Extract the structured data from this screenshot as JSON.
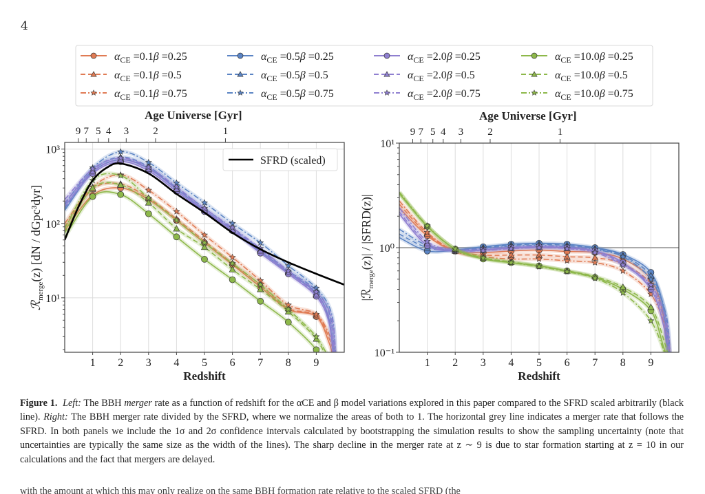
{
  "page_number": "4",
  "legend": {
    "entries": [
      {
        "alpha": "0.1",
        "beta": "0.25",
        "label": "αCE =0.1β =0.25",
        "color": "#e07b54",
        "style": "solid",
        "marker": "circle"
      },
      {
        "alpha": "0.1",
        "beta": "0.5",
        "label": "αCE =0.1β =0.5",
        "color": "#e07b54",
        "style": "dashed",
        "marker": "triangle"
      },
      {
        "alpha": "0.1",
        "beta": "0.75",
        "label": "αCE =0.1β =0.75",
        "color": "#e07b54",
        "style": "dashdot",
        "marker": "star"
      },
      {
        "alpha": "0.5",
        "beta": "0.25",
        "label": "αCE =0.5β =0.25",
        "color": "#5b84c4",
        "style": "solid",
        "marker": "circle"
      },
      {
        "alpha": "0.5",
        "beta": "0.5",
        "label": "αCE =0.5β =0.5",
        "color": "#5b84c4",
        "style": "dashed",
        "marker": "triangle"
      },
      {
        "alpha": "0.5",
        "beta": "0.75",
        "label": "αCE =0.5β =0.75",
        "color": "#5b84c4",
        "style": "dashdot",
        "marker": "star"
      },
      {
        "alpha": "2.0",
        "beta": "0.25",
        "label": "αCE =2.0β =0.25",
        "color": "#8f7fd0",
        "style": "solid",
        "marker": "circle"
      },
      {
        "alpha": "2.0",
        "beta": "0.5",
        "label": "αCE =2.0β =0.5",
        "color": "#8f7fd0",
        "style": "dashed",
        "marker": "triangle"
      },
      {
        "alpha": "2.0",
        "beta": "0.75",
        "label": "αCE =2.0β =0.75",
        "color": "#8f7fd0",
        "style": "dashdot",
        "marker": "star"
      },
      {
        "alpha": "10.0",
        "beta": "0.25",
        "label": "αCE =10.0β =0.25",
        "color": "#8db84a",
        "style": "solid",
        "marker": "circle"
      },
      {
        "alpha": "10.0",
        "beta": "0.5",
        "label": "αCE =10.0β =0.5",
        "color": "#8db84a",
        "style": "dashed",
        "marker": "triangle"
      },
      {
        "alpha": "10.0",
        "beta": "0.75",
        "label": "αCE =10.0β =0.75",
        "color": "#8db84a",
        "style": "dashdot",
        "marker": "star"
      }
    ]
  },
  "chart_data": [
    {
      "type": "line",
      "panel": "left",
      "title": "",
      "top_xlabel": "Age Universe [Gyr]",
      "top_ticks": [
        {
          "label": "9",
          "z": 0.48
        },
        {
          "label": "7",
          "z": 0.77
        },
        {
          "label": "5",
          "z": 1.2
        },
        {
          "label": "4",
          "z": 1.57
        },
        {
          "label": "3",
          "z": 2.2
        },
        {
          "label": "2",
          "z": 3.25
        },
        {
          "label": "1",
          "z": 5.75
        }
      ],
      "xlabel": "Redshift",
      "ylabel": "R_merge(z)  [dN / dGpc³dyr]",
      "xlim": [
        0,
        10
      ],
      "ylim": [
        1.85,
        1230
      ],
      "yscale": "log",
      "xticks": [
        1,
        2,
        3,
        4,
        5,
        6,
        7,
        8,
        9
      ],
      "yticks": [
        {
          "value": 10,
          "label": "10¹"
        },
        {
          "value": 100,
          "label": "10²"
        },
        {
          "value": 1000,
          "label": "10³"
        }
      ],
      "grid": true,
      "inner_legend": {
        "label": "SFRD (scaled)",
        "placement": "top-right"
      },
      "x": [
        0,
        1,
        2,
        3,
        4,
        5,
        6,
        7,
        8,
        9
      ],
      "sfrd": {
        "name": "SFRD (scaled)",
        "color": "#000000",
        "x": [
          0,
          0.5,
          1,
          1.5,
          2,
          3,
          4,
          5,
          6,
          7,
          8,
          9,
          10
        ],
        "values": [
          60,
          170,
          380,
          560,
          640,
          470,
          250,
          140,
          75,
          45,
          30,
          21,
          15
        ]
      },
      "series": [
        {
          "name": "αCE=0.1 β=0.25",
          "values": [
            80,
            240,
            300,
            210,
            110,
            55,
            28,
            14,
            7,
            5.6
          ]
        },
        {
          "name": "αCE=0.1 β=0.5",
          "values": [
            90,
            290,
            340,
            220,
            115,
            58,
            29,
            15,
            7.2,
            5.8
          ]
        },
        {
          "name": "αCE=0.1 β=0.75",
          "values": [
            100,
            310,
            450,
            280,
            145,
            70,
            35,
            17,
            8,
            6
          ]
        },
        {
          "name": "αCE=0.5 β=0.25",
          "values": [
            150,
            490,
            720,
            550,
            290,
            150,
            80,
            42,
            22,
            11.5
          ]
        },
        {
          "name": "αCE=0.5 β=0.5",
          "values": [
            160,
            520,
            780,
            580,
            300,
            160,
            85,
            45,
            23,
            12.5
          ]
        },
        {
          "name": "αCE=0.5 β=0.75",
          "values": [
            180,
            560,
            920,
            660,
            350,
            190,
            100,
            55,
            27,
            13.5
          ]
        },
        {
          "name": "αCE=2.0 β=0.25",
          "values": [
            170,
            470,
            680,
            510,
            270,
            145,
            80,
            40,
            21,
            10.5
          ]
        },
        {
          "name": "αCE=2.0 β=0.5",
          "values": [
            190,
            500,
            720,
            540,
            290,
            150,
            82,
            43,
            22,
            11
          ]
        },
        {
          "name": "αCE=2.0 β=0.75",
          "values": [
            210,
            540,
            760,
            570,
            310,
            160,
            88,
            46,
            23,
            12
          ]
        },
        {
          "name": "αCE=10.0 β=0.25",
          "values": [
            65,
            230,
            245,
            135,
            66,
            33,
            17.5,
            9,
            4.7,
            2.0
          ]
        },
        {
          "name": "αCE=10.0 β=0.5",
          "values": [
            75,
            300,
            330,
            190,
            85,
            48,
            24,
            13,
            6.5,
            2.8
          ]
        },
        {
          "name": "αCE=10.0 β=0.75",
          "values": [
            85,
            380,
            440,
            220,
            110,
            55,
            29,
            15,
            7,
            3
          ]
        }
      ]
    },
    {
      "type": "line",
      "panel": "right",
      "title": "",
      "top_xlabel": "Age Universe [Gyr]",
      "top_ticks": [
        {
          "label": "9",
          "z": 0.48
        },
        {
          "label": "7",
          "z": 0.77
        },
        {
          "label": "5",
          "z": 1.2
        },
        {
          "label": "4",
          "z": 1.57
        },
        {
          "label": "3",
          "z": 2.2
        },
        {
          "label": "2",
          "z": 3.25
        },
        {
          "label": "1",
          "z": 5.75
        }
      ],
      "xlabel": "Redshift",
      "ylabel": "|R_merge(z)|  /  |SFRD(z)|",
      "xlim": [
        0,
        10
      ],
      "ylim": [
        0.1,
        10
      ],
      "yscale": "log",
      "xticks": [
        1,
        2,
        3,
        4,
        5,
        6,
        7,
        8,
        9
      ],
      "yticks": [
        {
          "value": 0.1,
          "label": "10⁻¹"
        },
        {
          "value": 1,
          "label": "10⁰"
        },
        {
          "value": 10,
          "label": "10¹"
        }
      ],
      "reference_line": {
        "value": 1.0,
        "color": "#aaaaaa"
      },
      "grid": true,
      "x": [
        0,
        1,
        2,
        3,
        4,
        5,
        6,
        7,
        8,
        9
      ],
      "series": [
        {
          "name": "αCE=0.1 β=0.25",
          "values": [
            2.4,
            1.3,
            0.93,
            0.9,
            0.93,
            0.95,
            0.92,
            0.9,
            0.78,
            0.5
          ]
        },
        {
          "name": "αCE=0.1 β=0.5",
          "values": [
            2.6,
            1.35,
            0.93,
            0.85,
            0.85,
            0.85,
            0.82,
            0.8,
            0.7,
            0.45
          ]
        },
        {
          "name": "αCE=0.1 β=0.75",
          "values": [
            2.8,
            1.4,
            0.92,
            0.82,
            0.78,
            0.78,
            0.75,
            0.72,
            0.6,
            0.36
          ]
        },
        {
          "name": "αCE=0.5 β=0.25",
          "values": [
            1.25,
            0.93,
            0.95,
            1.02,
            1.08,
            1.1,
            1.08,
            1.0,
            0.86,
            0.58
          ]
        },
        {
          "name": "αCE=0.5 β=0.5",
          "values": [
            1.35,
            1.0,
            0.95,
            1.0,
            1.06,
            1.08,
            1.05,
            0.98,
            0.84,
            0.54
          ]
        },
        {
          "name": "αCE=0.5 β=0.75",
          "values": [
            1.5,
            1.05,
            0.94,
            0.98,
            1.03,
            1.05,
            1.02,
            0.96,
            0.82,
            0.5
          ]
        },
        {
          "name": "αCE=2.0 β=0.25",
          "values": [
            2.1,
            1.05,
            0.94,
            0.95,
            1.0,
            1.02,
            1.0,
            0.93,
            0.72,
            0.4
          ]
        },
        {
          "name": "αCE=2.0 β=0.5",
          "values": [
            2.2,
            1.1,
            0.94,
            0.95,
            0.99,
            1.01,
            0.99,
            0.92,
            0.7,
            0.42
          ]
        },
        {
          "name": "αCE=2.0 β=0.75",
          "values": [
            2.4,
            1.15,
            0.94,
            0.94,
            0.98,
            1.0,
            0.98,
            0.9,
            0.68,
            0.44
          ]
        },
        {
          "name": "αCE=10.0 β=0.25",
          "values": [
            3.3,
            1.6,
            0.97,
            0.78,
            0.72,
            0.67,
            0.6,
            0.52,
            0.4,
            0.25
          ]
        },
        {
          "name": "αCE=10.0 β=0.5",
          "values": [
            3.35,
            1.6,
            0.97,
            0.8,
            0.73,
            0.67,
            0.6,
            0.53,
            0.42,
            0.27
          ]
        },
        {
          "name": "αCE=10.0 β=0.75",
          "values": [
            3.4,
            1.62,
            0.97,
            0.8,
            0.72,
            0.66,
            0.59,
            0.51,
            0.37,
            0.2
          ]
        }
      ]
    }
  ],
  "caption": {
    "label": "Figure 1.",
    "left_label": "Left:",
    "text1": " The BBH ",
    "merger_word": "merger",
    "text2": " rate as a function of redshift for the αCE and β model variations explored in this paper compared to the SFRD scaled arbitrarily (black line). ",
    "right_label": "Right:",
    "text3": " The BBH merger rate divided by the SFRD, where we normalize the areas of both to 1. The horizontal grey line indicates a merger rate that follows the SFRD. In both panels we include the 1σ and 2σ confidence intervals calculated by bootstrapping the simulation results to show the sampling uncertainty (note that uncertainties are typically the same size as the width of the lines). The sharp decline in the merger rate at z ∼ 9 is due to star formation starting at z = 10 in our calculations and the fact that mergers are delayed."
  },
  "next_line": "with the amount at which this may only realize on the same BBH formation rate relative to the scaled SFRD (the"
}
